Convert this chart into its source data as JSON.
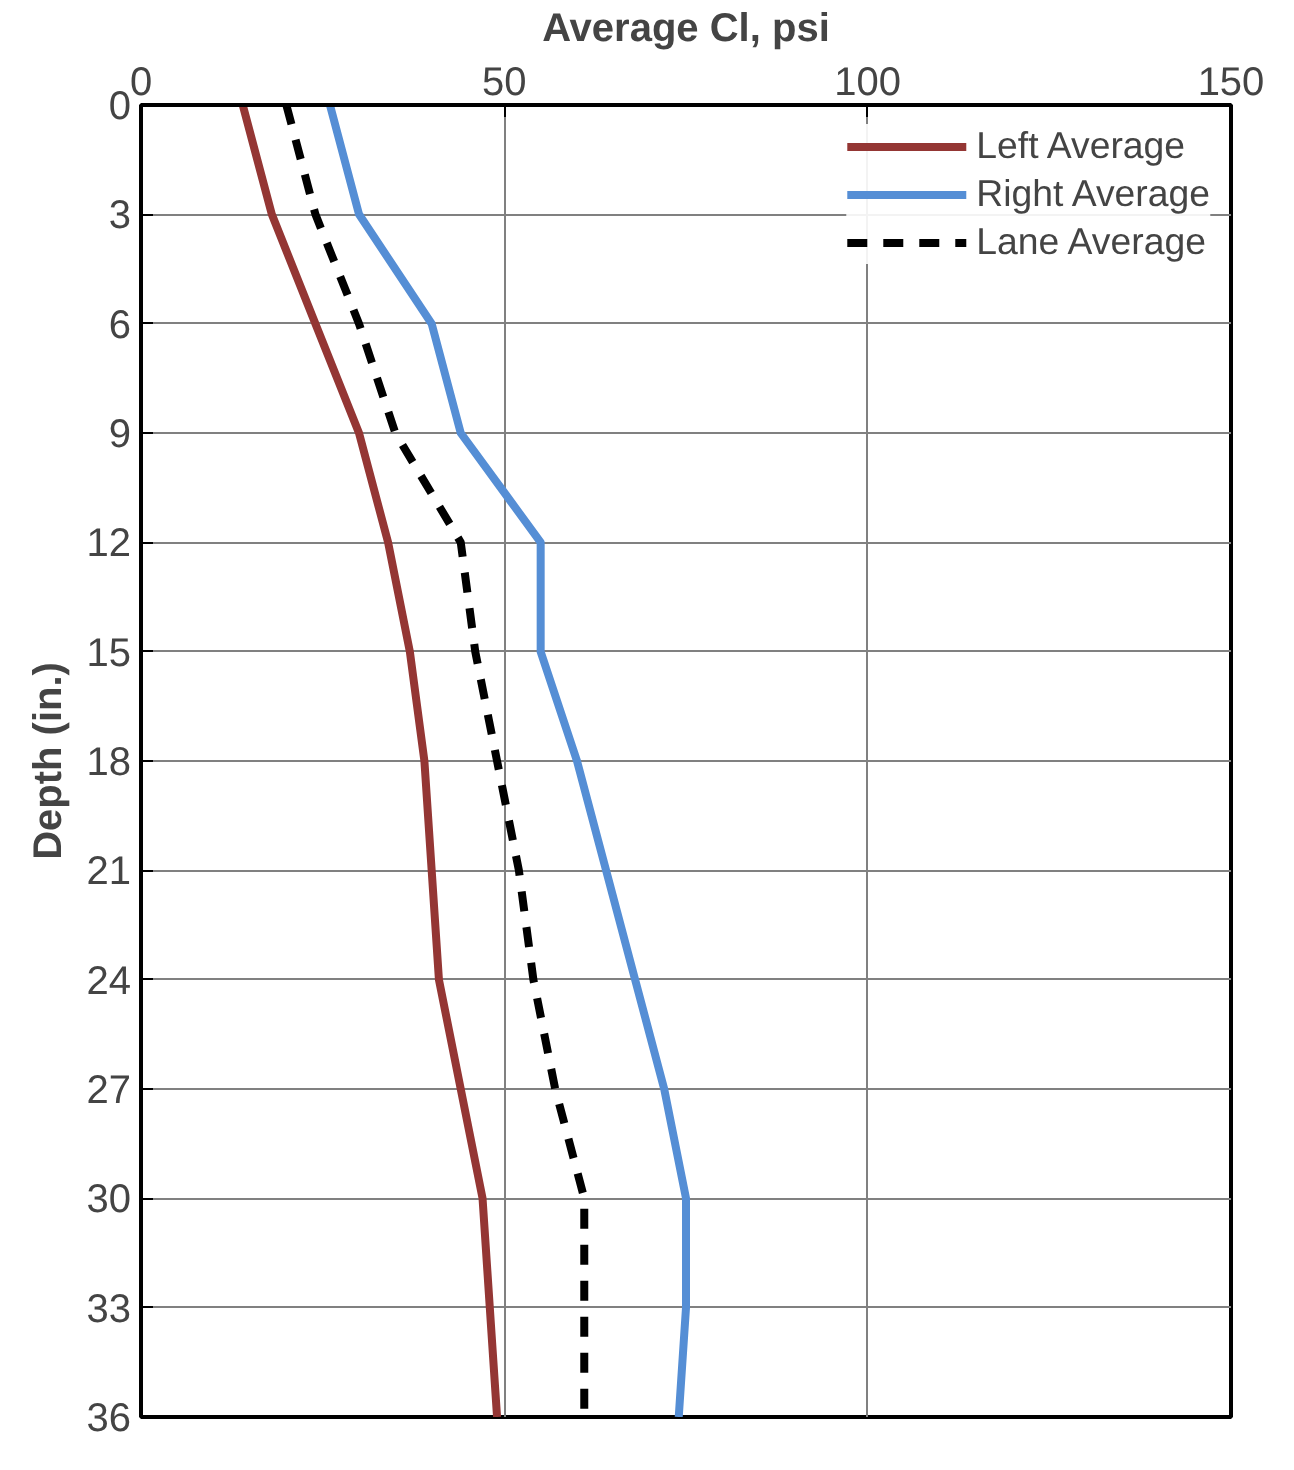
{
  "chart_data": {
    "type": "line",
    "xlabel": "Average Cl, psi",
    "ylabel": "Depth (in.)",
    "xlim": [
      0,
      150
    ],
    "xticks": [
      0,
      50,
      100,
      150
    ],
    "ylim": [
      36,
      0
    ],
    "yticks": [
      0,
      3,
      6,
      9,
      12,
      15,
      18,
      21,
      24,
      27,
      30,
      33,
      36
    ],
    "grid": true,
    "legend": "top right",
    "marker": "none",
    "series": [
      {
        "name": "Left Average",
        "color": "#943634",
        "line_style": "solid",
        "x": [
          14,
          18,
          24,
          30,
          34,
          37,
          39,
          40,
          41,
          44,
          47,
          48,
          49
        ],
        "values": [
          0,
          3,
          6,
          9,
          12,
          15,
          18,
          21,
          24,
          27,
          30,
          33,
          36
        ]
      },
      {
        "name": "Right Average",
        "color": "#558ed5",
        "line_style": "solid",
        "x": [
          26,
          30,
          40,
          44,
          55,
          55,
          60,
          64,
          68,
          72,
          75,
          75,
          74
        ],
        "values": [
          0,
          3,
          6,
          9,
          12,
          15,
          18,
          21,
          24,
          27,
          30,
          33,
          36
        ]
      },
      {
        "name": "Lane Average",
        "color": "#000000",
        "line_style": "dashed",
        "x": [
          20,
          24,
          30,
          35,
          44,
          46,
          49,
          52,
          54,
          57,
          61,
          61,
          61
        ],
        "values": [
          0,
          3,
          6,
          9,
          12,
          15,
          18,
          21,
          24,
          27,
          30,
          33,
          36
        ]
      }
    ]
  }
}
